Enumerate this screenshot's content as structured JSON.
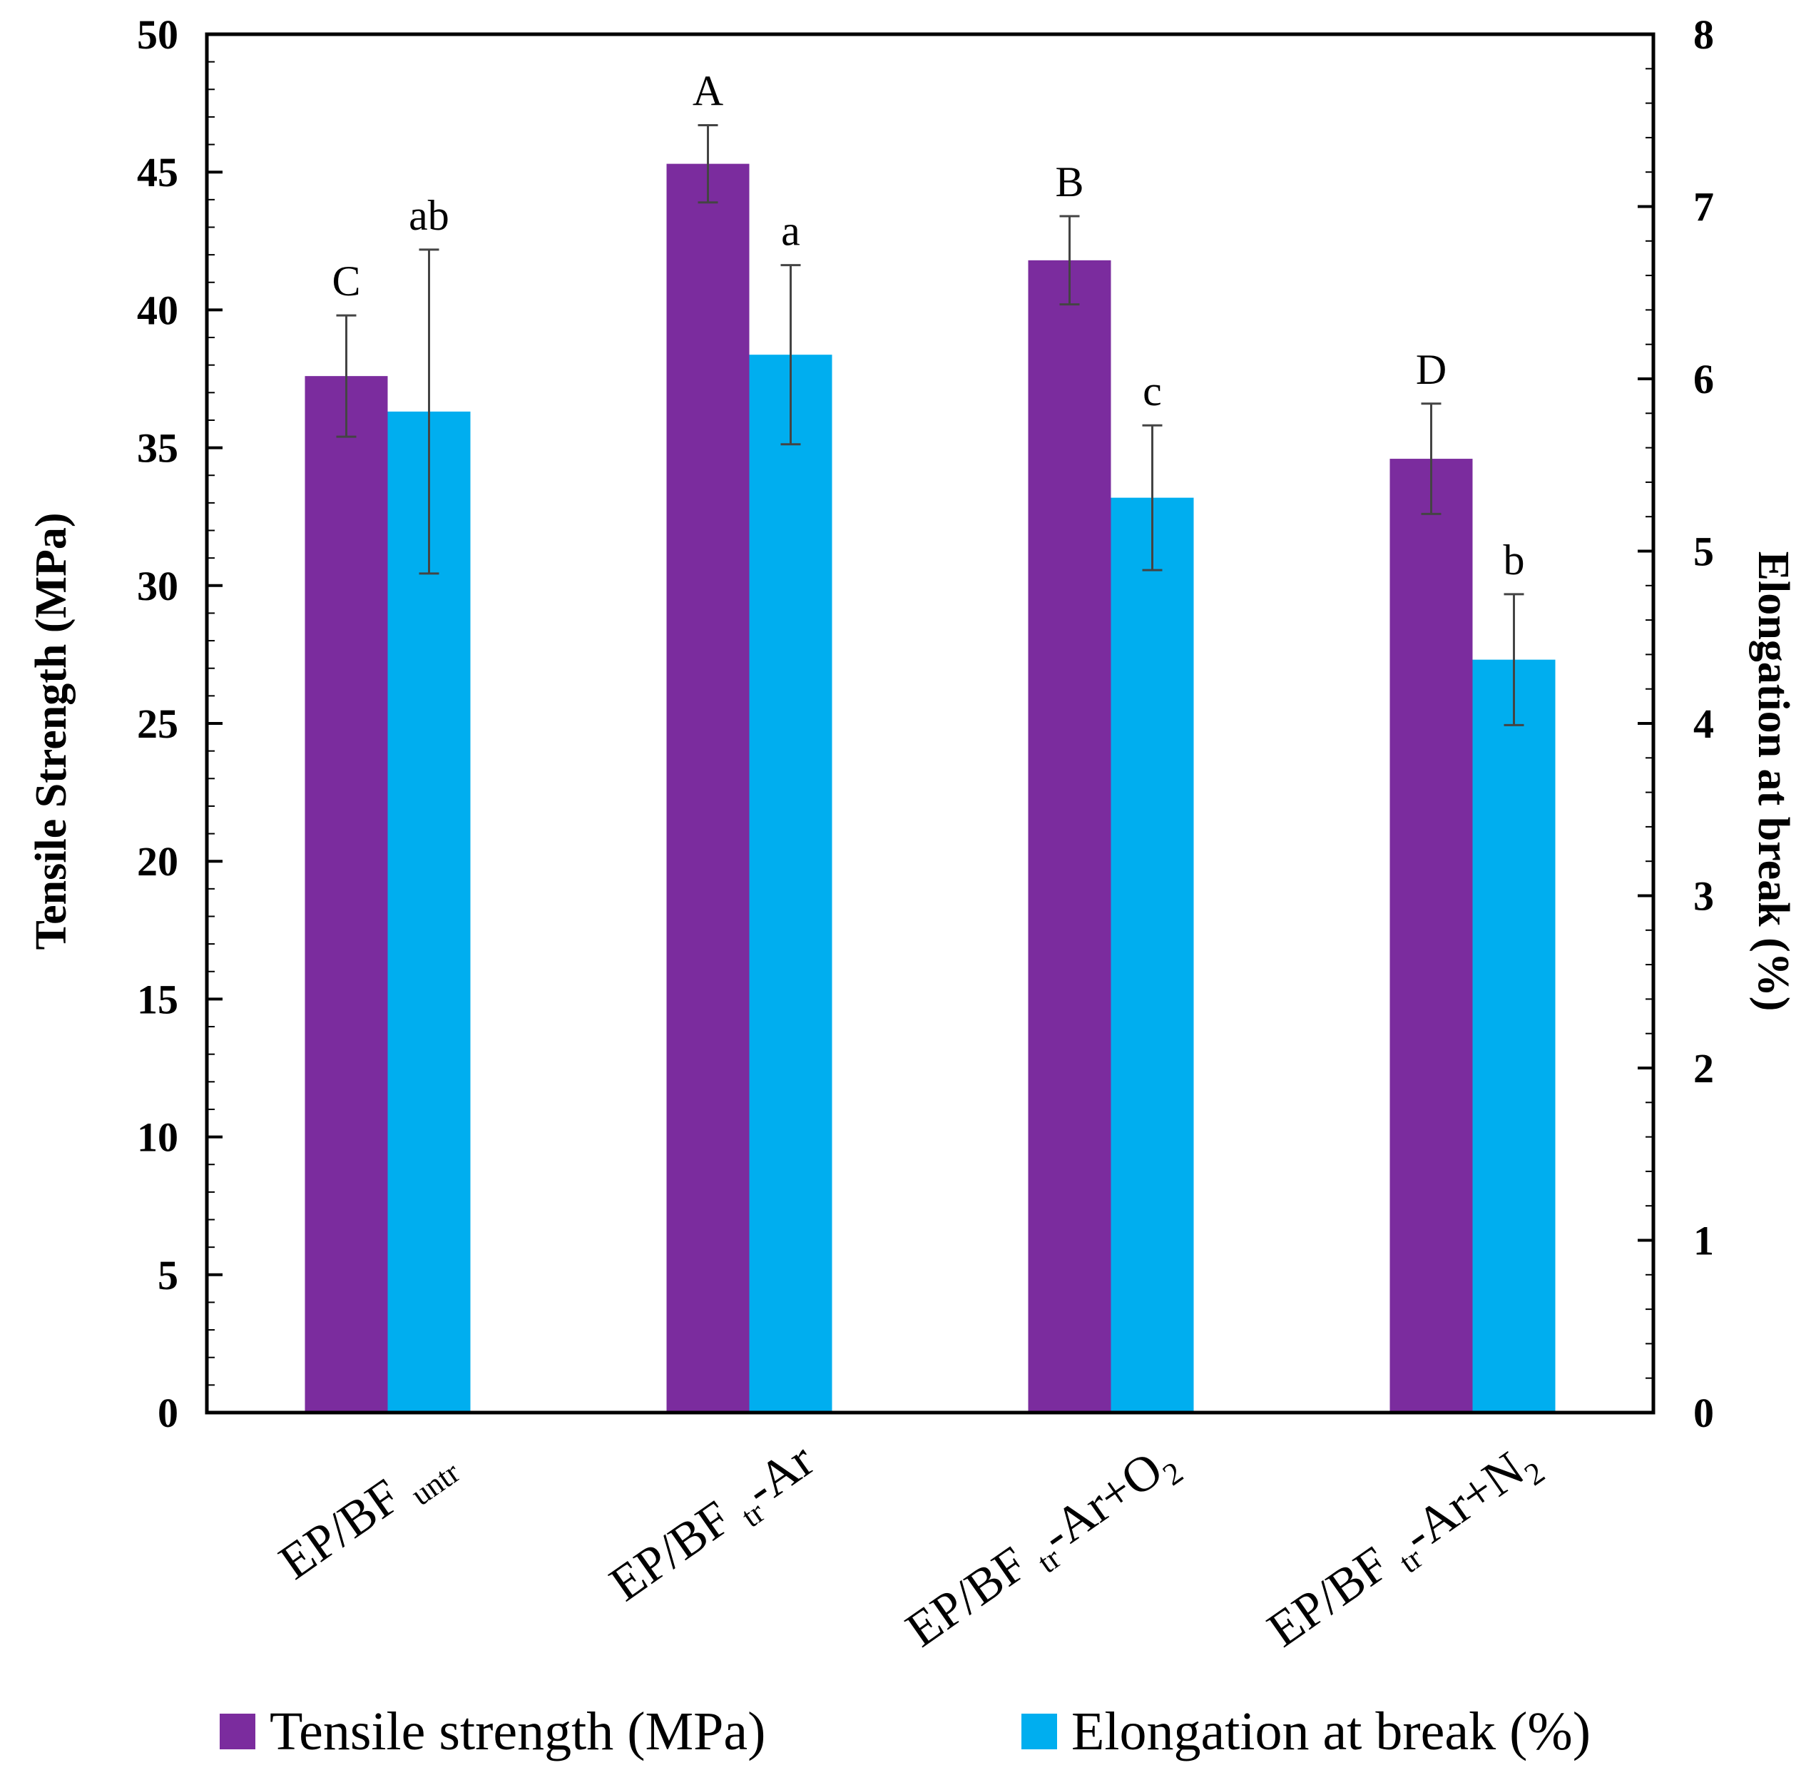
{
  "chart_data": {
    "type": "bar",
    "categories": [
      {
        "main": "EP/BF",
        "sub": "untr",
        "suffix": "",
        "suffix_sub": ""
      },
      {
        "main": "EP/BF",
        "sub": "tr",
        "suffix": "-Ar",
        "suffix_sub": ""
      },
      {
        "main": "EP/BF",
        "sub": "tr",
        "suffix": "-Ar+O",
        "suffix_sub": "2"
      },
      {
        "main": "EP/BF",
        "sub": "tr",
        "suffix": "-Ar+N",
        "suffix_sub": "2"
      }
    ],
    "series": [
      {
        "name": "Tensile strength (MPa)",
        "axis": "left",
        "color": "#7b2c9e",
        "values": [
          37.6,
          45.3,
          41.8,
          34.6
        ],
        "errors": [
          2.2,
          1.4,
          1.6,
          2.0
        ],
        "letters": [
          "C",
          "A",
          "B",
          "D"
        ]
      },
      {
        "name": "Elongation at break (%)",
        "axis": "right",
        "color": "#00aeef",
        "values": [
          5.81,
          6.14,
          5.31,
          4.37
        ],
        "errors": [
          0.94,
          0.52,
          0.42,
          0.38
        ],
        "letters": [
          "ab",
          "a",
          "c",
          "b"
        ]
      }
    ],
    "ylabel": "Tensile Strength (MPa)",
    "y2label": "Elongation at break (%)",
    "ylim": [
      0,
      50
    ],
    "y2lim": [
      0,
      8
    ],
    "yticks": [
      "0",
      "5",
      "10",
      "15",
      "20",
      "25",
      "30",
      "35",
      "40",
      "45",
      "50"
    ],
    "y2ticks": [
      "0",
      "1",
      "2",
      "3",
      "4",
      "5",
      "6",
      "7",
      "8"
    ],
    "legend_position": "bottom",
    "grid": false
  }
}
